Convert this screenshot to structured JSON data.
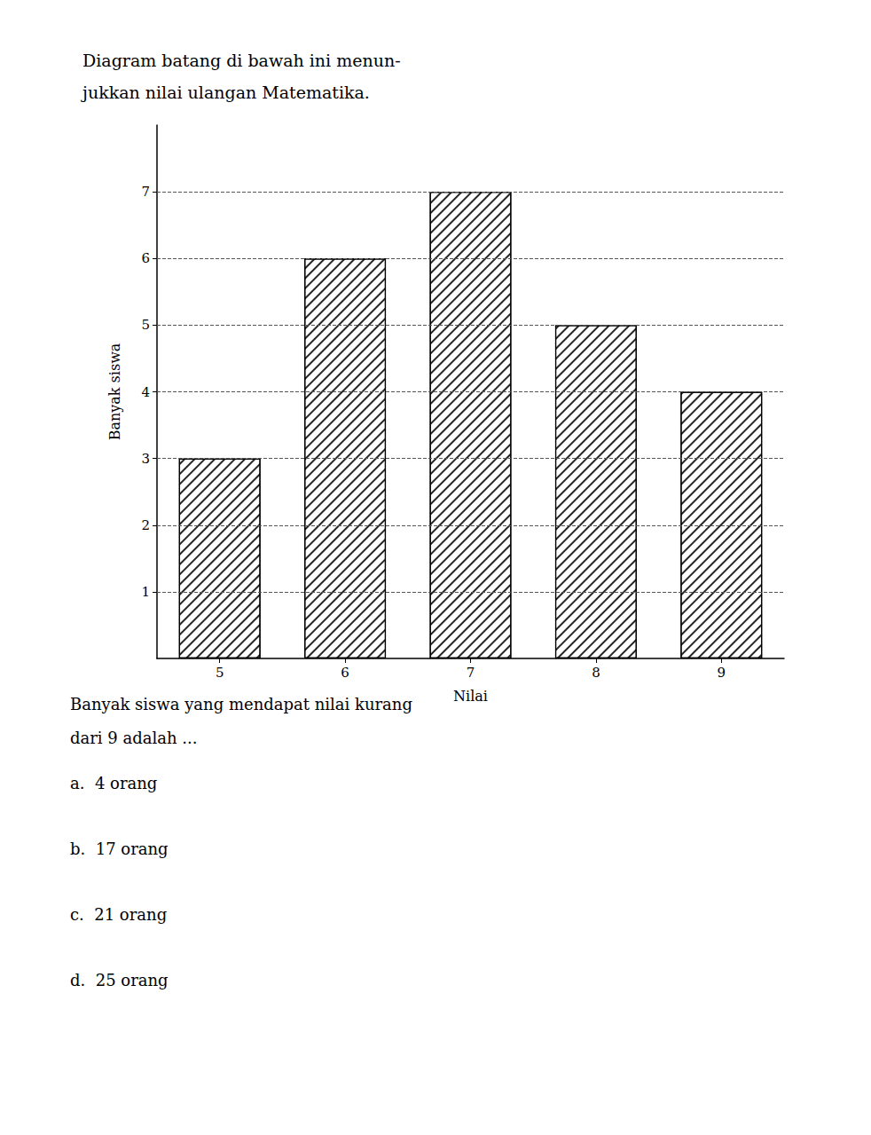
{
  "chart_data": {
    "type": "bar",
    "title": "Diagram batang di bawah ini menun-\njukkan nilai ulangan Matematika.",
    "xlabel": "Nilai",
    "ylabel": "Banyak siswa",
    "categories": [
      5,
      6,
      7,
      8,
      9
    ],
    "values": [
      3,
      6,
      7,
      5,
      4
    ],
    "color": "white",
    "ylim": [
      0,
      8
    ],
    "yticks": [
      1,
      2,
      3,
      4,
      5,
      6,
      7
    ],
    "grid": true,
    "annotations": [
      "Banyak siswa yang mendapat nilai kurang\ndari 9 adalah ...",
      "a.  4 orang",
      "b.  17 orang",
      "c.  21 orang",
      "d.  25 orang"
    ]
  }
}
